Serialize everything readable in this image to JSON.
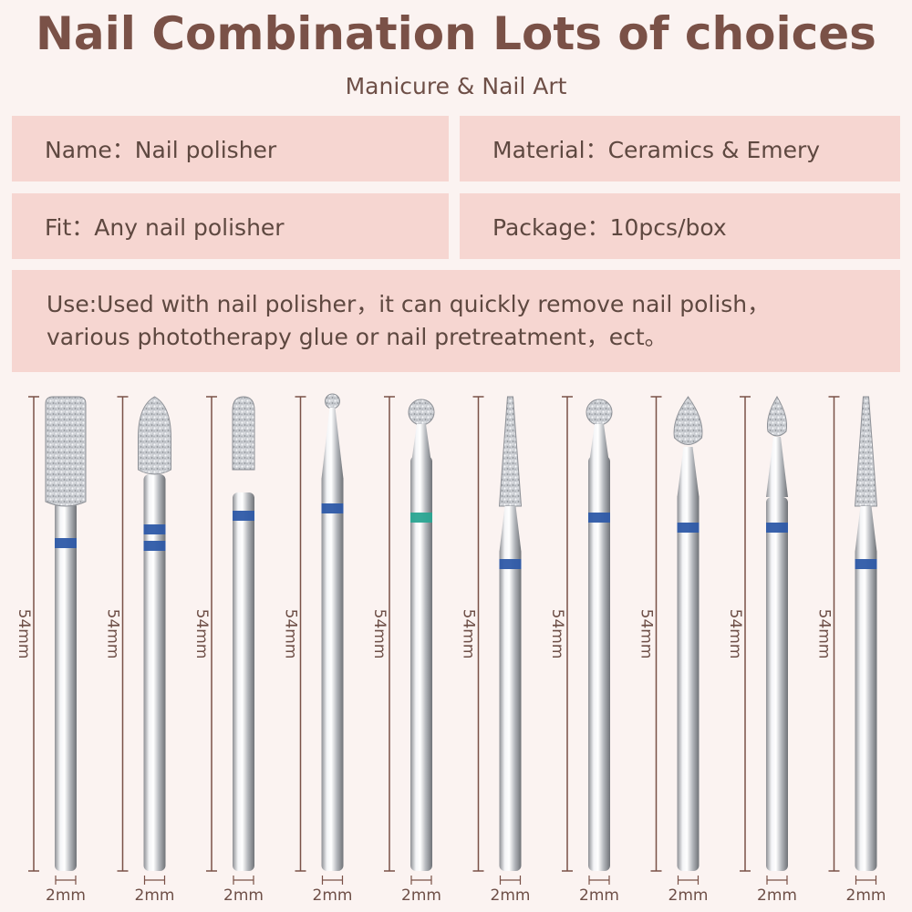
{
  "header": {
    "title": "Nail Combination Lots of choices",
    "subtitle": "Manicure & Nail Art"
  },
  "specs": {
    "name": "Name：Nail polisher",
    "material": "Material：Ceramics & Emery",
    "fit": "Fit：Any nail polisher",
    "package": "Package：10pcs/box",
    "use_line1": "Use:Used with nail polisher，it can quickly remove nail polish，",
    "use_line2": "various phototherapy glue or nail pretreatment，ect。"
  },
  "bits": [
    {
      "shape": "cylinder",
      "length_label": "54mm",
      "diameter_label": "2mm",
      "band_color": "#2e5aa8",
      "bands": 1
    },
    {
      "shape": "bullet",
      "length_label": "54mm",
      "diameter_label": "2mm",
      "band_color": "#2e5aa8",
      "bands": 2
    },
    {
      "shape": "small-cylinder",
      "length_label": "54mm",
      "diameter_label": "2mm",
      "band_color": "#2e5aa8",
      "bands": 1
    },
    {
      "shape": "tiny-ball",
      "length_label": "54mm",
      "diameter_label": "2mm",
      "band_color": "#2e5aa8",
      "bands": 1
    },
    {
      "shape": "ball",
      "length_label": "54mm",
      "diameter_label": "2mm",
      "band_color": "#2aa592",
      "bands": 1
    },
    {
      "shape": "long-cone",
      "length_label": "54mm",
      "diameter_label": "2mm",
      "band_color": "#2e5aa8",
      "bands": 1
    },
    {
      "shape": "ball",
      "length_label": "54mm",
      "diameter_label": "2mm",
      "band_color": "#2e5aa8",
      "bands": 1
    },
    {
      "shape": "flame",
      "length_label": "54mm",
      "diameter_label": "2mm",
      "band_color": "#2e5aa8",
      "bands": 1
    },
    {
      "shape": "small-flame",
      "length_label": "54mm",
      "diameter_label": "2mm",
      "band_color": "#2e5aa8",
      "bands": 1
    },
    {
      "shape": "long-cone",
      "length_label": "54mm",
      "diameter_label": "2mm",
      "band_color": "#2e5aa8",
      "bands": 1
    }
  ]
}
